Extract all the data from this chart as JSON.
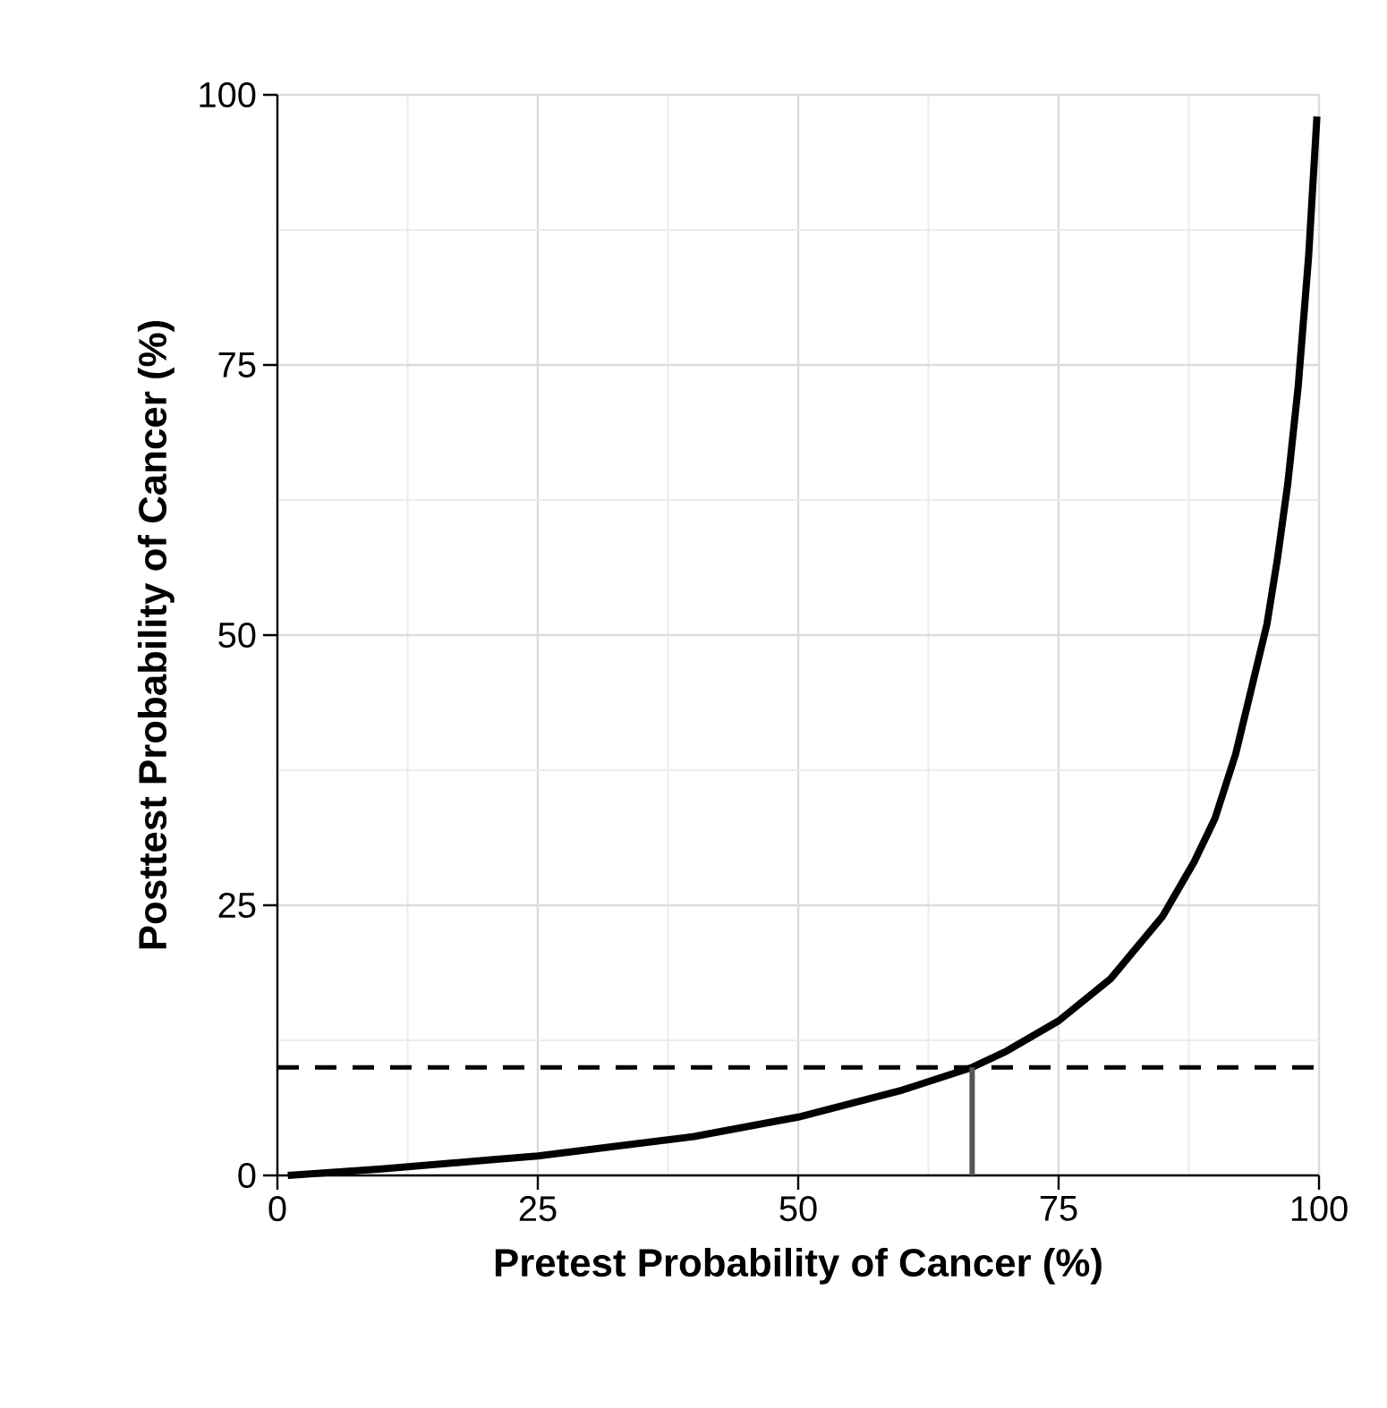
{
  "chart_data": {
    "type": "line",
    "xlabel": "Pretest Probability of Cancer (%)",
    "ylabel": "Posttest Probability of Cancer (%)",
    "xlim": [
      0,
      100
    ],
    "ylim": [
      0,
      100
    ],
    "xticks": [
      0,
      25,
      50,
      75,
      100
    ],
    "yticks": [
      0,
      25,
      50,
      75,
      100
    ],
    "grid": true,
    "series": [
      {
        "color": "#000000",
        "x": [
          1,
          10,
          20,
          25,
          30,
          40,
          50,
          60,
          66.7,
          70,
          75,
          80,
          85,
          88,
          90,
          92,
          94,
          95,
          96,
          97,
          98,
          99,
          99.8
        ],
        "values": [
          0,
          0.6,
          1.4,
          1.8,
          2.4,
          3.6,
          5.4,
          7.9,
          10,
          11.5,
          14.3,
          18.2,
          24,
          29,
          33,
          39,
          47,
          51,
          57,
          64,
          73,
          85,
          98
        ]
      },
      {
        "type": "line",
        "color": "#555555",
        "x": [
          66.7,
          66.7
        ],
        "values": [
          0,
          10
        ]
      }
    ],
    "ref_lines": [
      {
        "axis": "y",
        "value": 10,
        "color": "#000000",
        "line_style": "dashed"
      }
    ]
  }
}
